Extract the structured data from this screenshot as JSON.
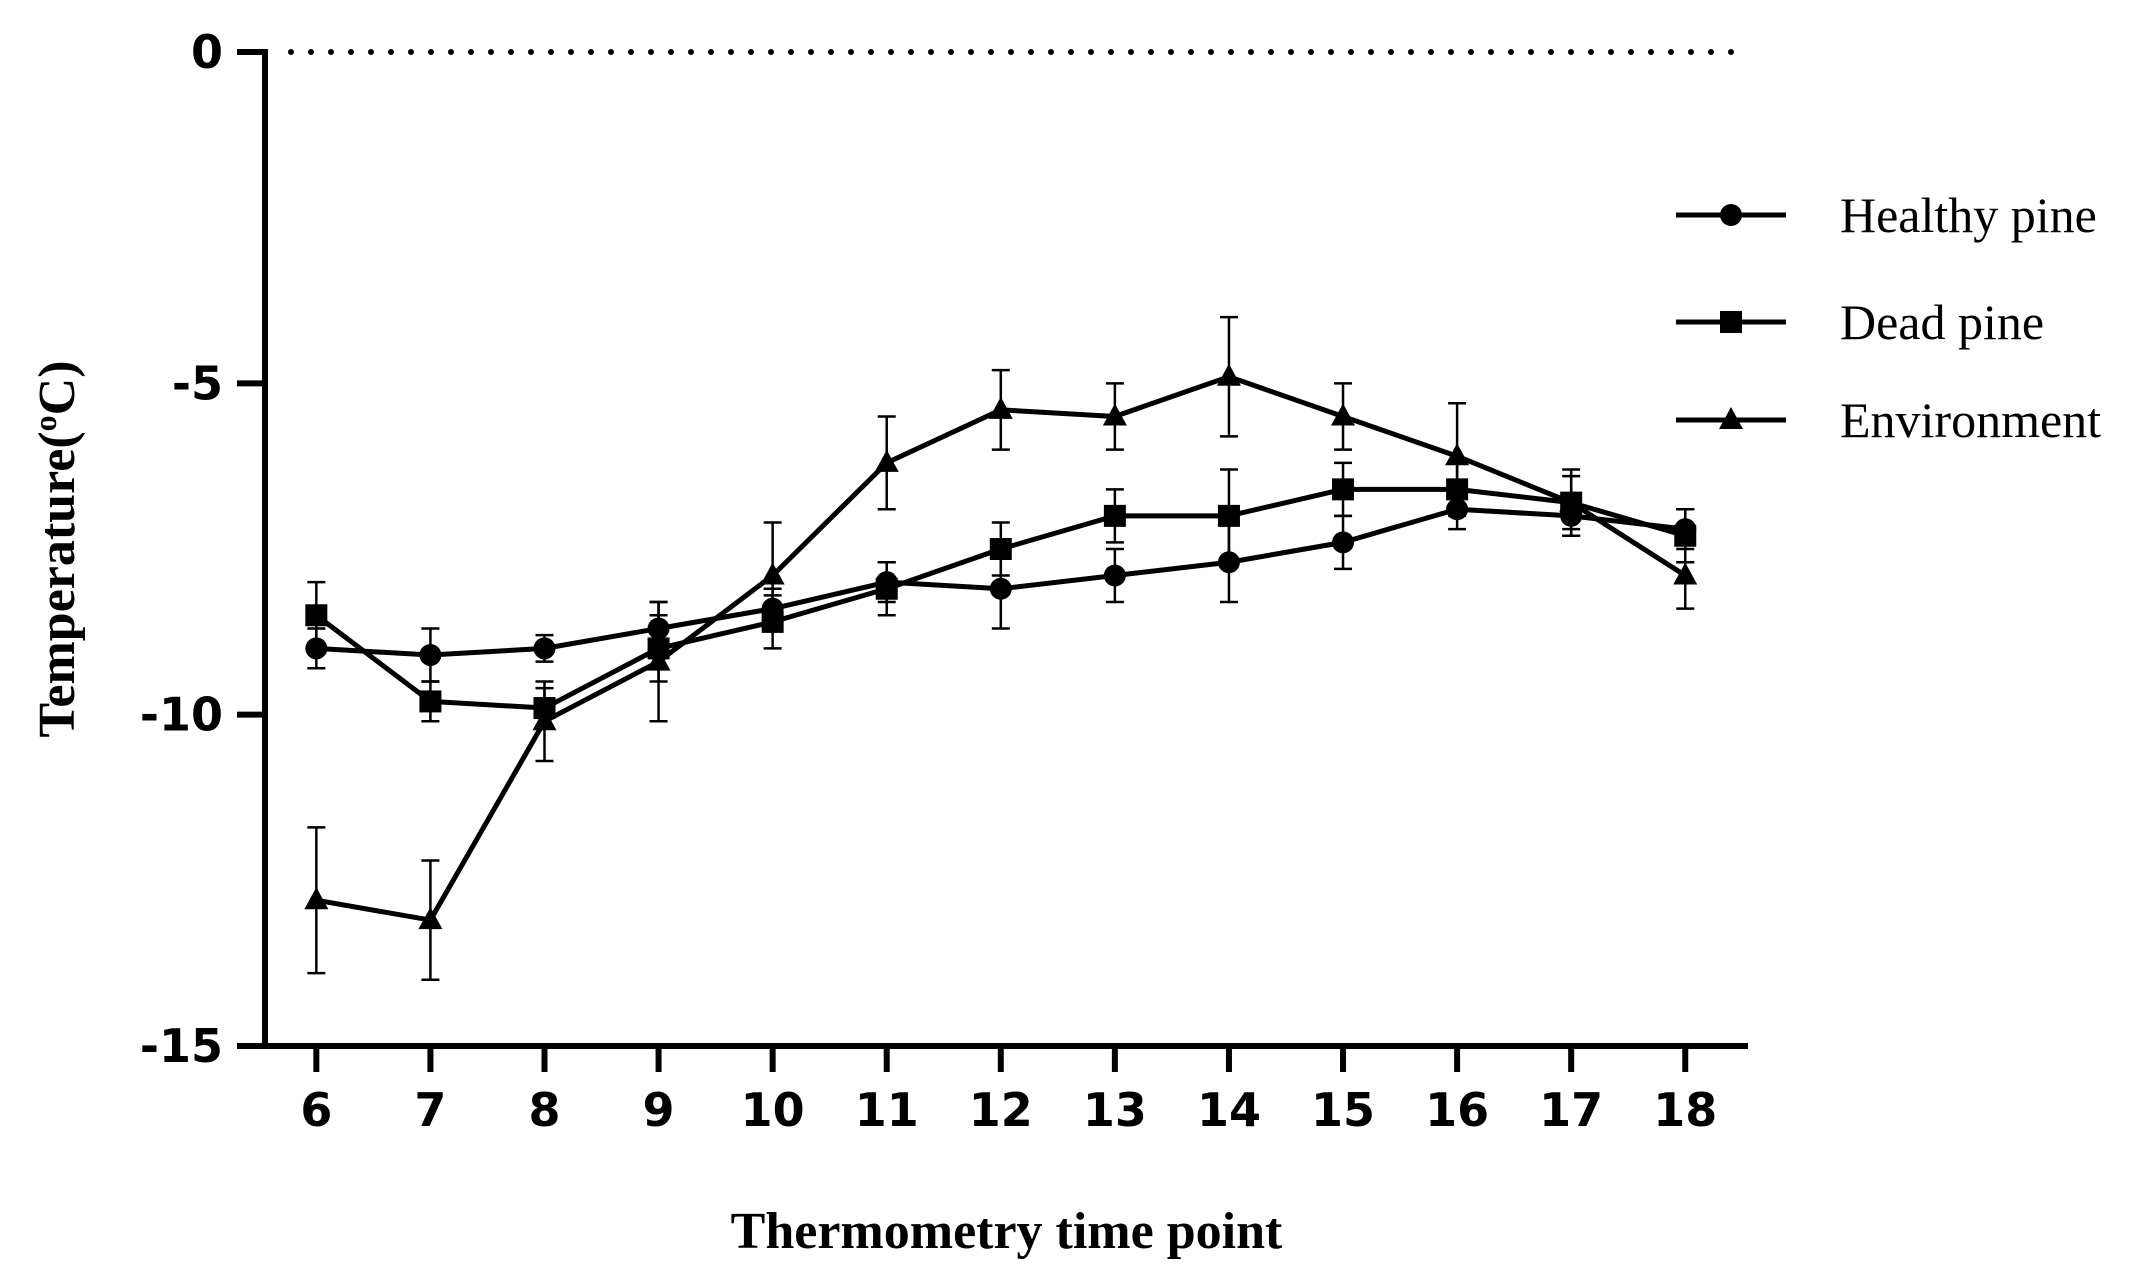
{
  "chart_data": {
    "type": "line",
    "title": "",
    "xlabel": "Thermometry time point",
    "ylabel_main": "Temperature(",
    "ylabel_sup": "o",
    "ylabel_end": "C)",
    "x": [
      6,
      7,
      8,
      9,
      10,
      11,
      12,
      13,
      14,
      15,
      16,
      17,
      18
    ],
    "xlim": [
      5.55,
      18.55
    ],
    "ylim": [
      -15,
      0
    ],
    "yticks": [
      0,
      -5,
      -10,
      -15
    ],
    "grid": false,
    "reference_line": 0,
    "legend_position": "right",
    "series": [
      {
        "name": "Healthy pine",
        "marker": "circle",
        "values": [
          -9.0,
          -9.1,
          -9.0,
          -8.7,
          -8.4,
          -8.0,
          -8.1,
          -7.9,
          -7.7,
          -7.4,
          -6.9,
          -7.0,
          -7.2
        ],
        "errors": [
          0.3,
          0.4,
          0.2,
          0.4,
          0.3,
          0.3,
          0.6,
          0.4,
          0.6,
          0.4,
          0.3,
          0.3,
          0.3
        ]
      },
      {
        "name": "Dead pine",
        "marker": "square",
        "values": [
          -8.5,
          -9.8,
          -9.9,
          -9.0,
          -8.6,
          -8.1,
          -7.5,
          -7.0,
          -7.0,
          -6.6,
          -6.6,
          -6.8,
          -7.3
        ],
        "errors": [
          0.5,
          0.3,
          0.3,
          0.5,
          0.4,
          0.4,
          0.4,
          0.4,
          0.7,
          0.4,
          0.4,
          0.4,
          0.4
        ]
      },
      {
        "name": "Environment",
        "marker": "triangle",
        "values": [
          -12.8,
          -13.1,
          -10.1,
          -9.2,
          -7.9,
          -6.2,
          -5.4,
          -5.5,
          -4.9,
          -5.5,
          -6.1,
          -6.8,
          -7.9
        ],
        "errors": [
          1.1,
          0.9,
          0.6,
          0.9,
          0.8,
          0.7,
          0.6,
          0.5,
          0.9,
          0.5,
          0.8,
          0.5,
          0.5
        ]
      }
    ]
  }
}
